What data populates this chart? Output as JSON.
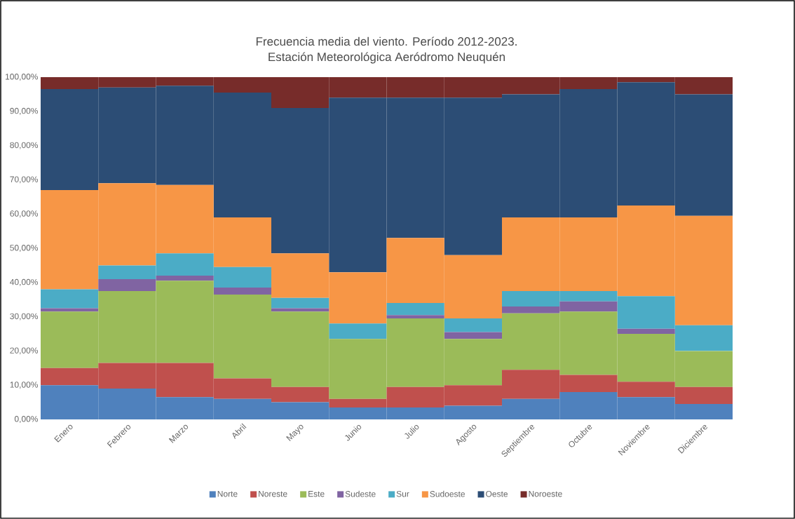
{
  "chart_data": {
    "type": "bar",
    "stacked": true,
    "title": "Frecuencia media del viento. Período 2012-2023.",
    "subtitle": "Estación Meteorológica Aeródromo Neuquén",
    "categories": [
      "Enero",
      "Febrero",
      "Marzo",
      "Abril",
      "Mayo",
      "Junio",
      "Julio",
      "Agosto",
      "Septiembre",
      "Octubre",
      "Noviembre",
      "Diciembre"
    ],
    "series": [
      {
        "name": "Norte",
        "color": "#4f81bd",
        "values": [
          10,
          9,
          6.5,
          6,
          5,
          3.5,
          3.5,
          4,
          6,
          8,
          6.5,
          4.5
        ]
      },
      {
        "name": "Noreste",
        "color": "#c0504d",
        "values": [
          5,
          7.5,
          10,
          6,
          4.5,
          2.5,
          6,
          6,
          8.5,
          5,
          4.5,
          5
        ]
      },
      {
        "name": "Este",
        "color": "#9bbb59",
        "values": [
          16.5,
          21,
          24,
          24.5,
          22,
          17.5,
          20,
          13.5,
          16.5,
          18.5,
          14,
          10.5
        ]
      },
      {
        "name": "Sudeste",
        "color": "#8064a2",
        "values": [
          1,
          3.5,
          1.5,
          2,
          1,
          0,
          1,
          2,
          2,
          3,
          1.5,
          0
        ]
      },
      {
        "name": "Sur",
        "color": "#4bacc6",
        "values": [
          5.5,
          4,
          6.5,
          6,
          3,
          4.5,
          3.5,
          4,
          4.5,
          3,
          9.5,
          7.5
        ]
      },
      {
        "name": "Sudoeste",
        "color": "#f79646",
        "values": [
          29,
          24,
          20,
          14.5,
          13,
          15,
          19,
          18.5,
          21.5,
          21.5,
          26.5,
          32
        ]
      },
      {
        "name": "Oeste",
        "color": "#2c4d75",
        "values": [
          29.5,
          28,
          29,
          36.5,
          42.5,
          51,
          41,
          46,
          36,
          37.5,
          36,
          35.5
        ]
      },
      {
        "name": "Noroeste",
        "color": "#772c2a",
        "values": [
          3.5,
          3,
          2.5,
          4.5,
          9,
          6,
          6,
          6,
          5,
          3.5,
          1.5,
          5
        ]
      }
    ],
    "ylim": [
      0,
      100
    ],
    "yticks": [
      {
        "value": 0,
        "label": "0,00%"
      },
      {
        "value": 10,
        "label": "10,00%"
      },
      {
        "value": 20,
        "label": "20,00%"
      },
      {
        "value": 30,
        "label": "30,00%"
      },
      {
        "value": 40,
        "label": "40,00%"
      },
      {
        "value": 50,
        "label": "50,00%"
      },
      {
        "value": 60,
        "label": "60,00%"
      },
      {
        "value": 70,
        "label": "70,00%"
      },
      {
        "value": 80,
        "label": "80,00%"
      },
      {
        "value": 90,
        "label": "90,00%"
      },
      {
        "value": 100,
        "label": "100,00%"
      }
    ],
    "legend": "bottom"
  }
}
